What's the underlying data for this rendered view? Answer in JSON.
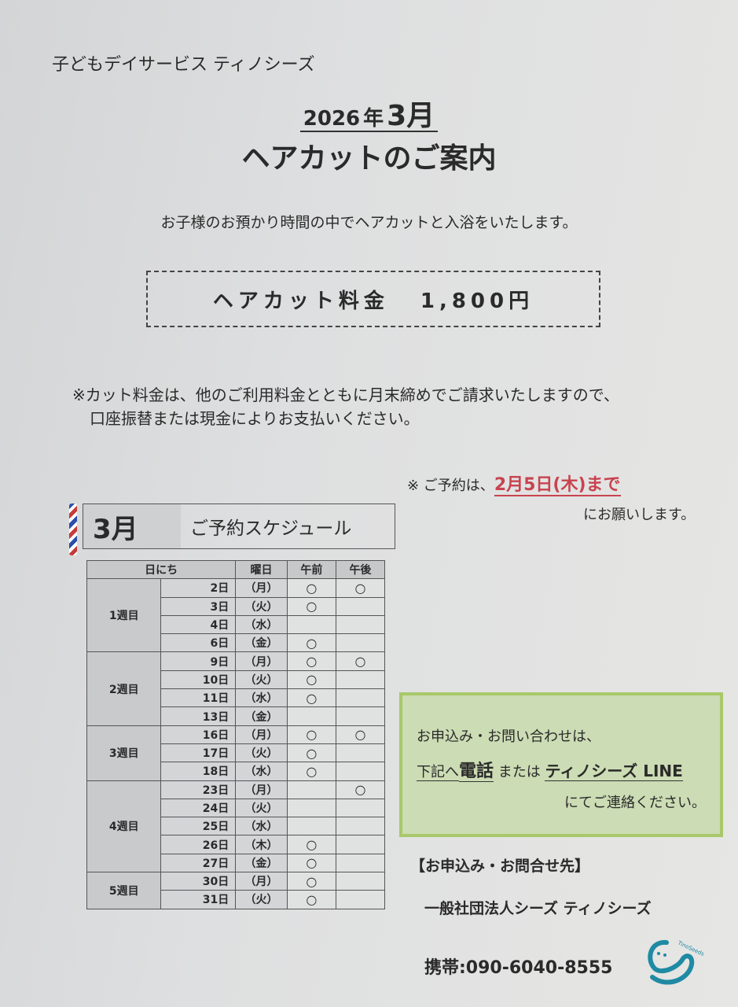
{
  "header": {
    "organization": "子どもデイサービス ティノシーズ",
    "year": "2026",
    "year_suffix": "年",
    "month": "3月",
    "title": "ヘアカットのご案内"
  },
  "intro": "お子様のお預かり時間の中でヘアカットと入浴をいたします。",
  "price": {
    "label": "ヘアカット料金",
    "value": "1,800円"
  },
  "note": {
    "line1": "※カット料金は、他のご利用料金とともに月末締めでご請求いたしますので、",
    "line2": "口座振替または現金によりお支払いください。"
  },
  "deadline": {
    "prefix": "※ ご予約は、",
    "date": "2月5日(木)まで",
    "suffix": "にお願いします。",
    "color": "#c8434f"
  },
  "schedule": {
    "month": "3月",
    "title": "ご予約スケジュール",
    "headers": [
      "日にち",
      "曜日",
      "午前",
      "午後"
    ],
    "mark": "○",
    "weeks": [
      {
        "label": "1週目",
        "days": [
          {
            "date": "2日",
            "dow": "（月）",
            "am": true,
            "pm": true
          },
          {
            "date": "3日",
            "dow": "（火）",
            "am": true,
            "pm": false
          },
          {
            "date": "4日",
            "dow": "（水）",
            "am": false,
            "pm": false
          },
          {
            "date": "6日",
            "dow": "（金）",
            "am": true,
            "pm": false
          }
        ]
      },
      {
        "label": "2週目",
        "days": [
          {
            "date": "9日",
            "dow": "（月）",
            "am": true,
            "pm": true
          },
          {
            "date": "10日",
            "dow": "（火）",
            "am": true,
            "pm": false
          },
          {
            "date": "11日",
            "dow": "（水）",
            "am": true,
            "pm": false
          },
          {
            "date": "13日",
            "dow": "（金）",
            "am": false,
            "pm": false
          }
        ]
      },
      {
        "label": "3週目",
        "days": [
          {
            "date": "16日",
            "dow": "（月）",
            "am": true,
            "pm": true
          },
          {
            "date": "17日",
            "dow": "（火）",
            "am": true,
            "pm": false
          },
          {
            "date": "18日",
            "dow": "（水）",
            "am": true,
            "pm": false
          }
        ]
      },
      {
        "label": "4週目",
        "days": [
          {
            "date": "23日",
            "dow": "（月）",
            "am": false,
            "pm": true
          },
          {
            "date": "24日",
            "dow": "（火）",
            "am": false,
            "pm": false
          },
          {
            "date": "25日",
            "dow": "（水）",
            "am": false,
            "pm": false
          },
          {
            "date": "26日",
            "dow": "（木）",
            "am": true,
            "pm": false
          },
          {
            "date": "27日",
            "dow": "（金）",
            "am": true,
            "pm": false
          }
        ]
      },
      {
        "label": "5週目",
        "days": [
          {
            "date": "30日",
            "dow": "（月）",
            "am": true,
            "pm": false
          },
          {
            "date": "31日",
            "dow": "（火）",
            "am": true,
            "pm": false
          }
        ]
      }
    ]
  },
  "inquiry": {
    "line1": "お申込み・お問い合わせは、",
    "line2_a": "下記へ",
    "line2_b": "電話",
    "line2_c": "または",
    "line2_d": "ティノシーズ LINE",
    "line3": "にてご連絡ください。",
    "border_color": "#a8c86a",
    "bg_color": "#ccdcb4"
  },
  "contact": {
    "heading": "【お申込み・お問合せ先】",
    "org": "一般社団法人シーズ ティノシーズ",
    "phone": "携帯:090-6040-8555"
  },
  "logo": {
    "text": "TinoSeeds",
    "color": "#1f8aa3"
  }
}
